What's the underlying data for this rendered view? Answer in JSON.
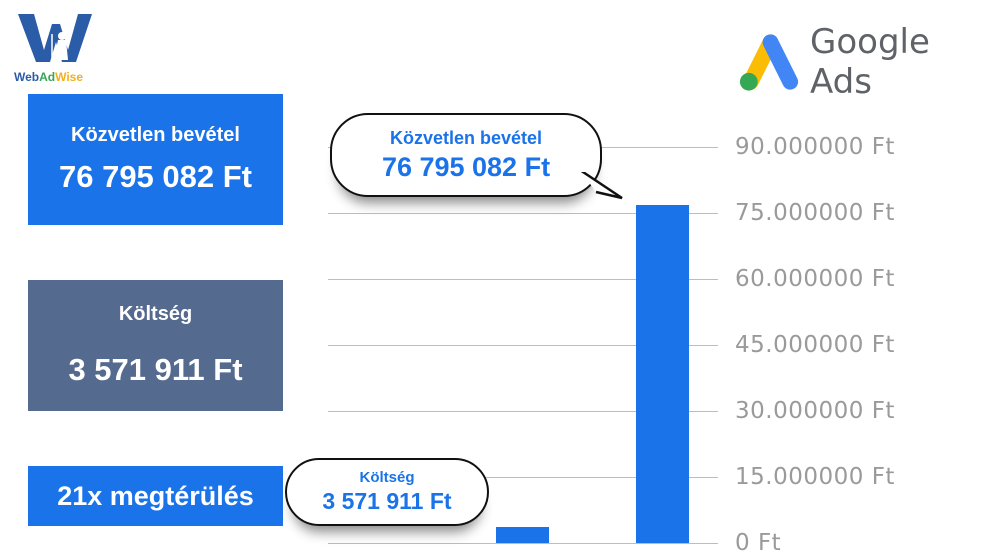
{
  "logo": {
    "brand": "WebAdWise",
    "colors": {
      "w": "#2a5ca8",
      "web": "#2a5ca8",
      "ad": "#34a853",
      "wise": "#f2b01e"
    }
  },
  "google_ads": {
    "label": "Google Ads",
    "colors": {
      "blue": "#4285f4",
      "yellow": "#fbbc04",
      "green": "#34a853"
    }
  },
  "cards": [
    {
      "title": "Közvetlen bevétel",
      "value": "76 795 082 Ft",
      "color": "#1a73e8"
    },
    {
      "title": "Költség",
      "value": "3 571 911 Ft",
      "color": "#546a8e"
    },
    {
      "title": "21x megtérülés",
      "color": "#1a73e8"
    }
  ],
  "callouts": [
    {
      "title": "Közvetlen bevétel",
      "value": "76 795 082 Ft"
    },
    {
      "title": "Költség",
      "value": "3 571 911 Ft"
    }
  ],
  "chart_data": {
    "type": "bar",
    "categories": [
      "Költség",
      "Közvetlen bevétel"
    ],
    "values": [
      3571911,
      76795082
    ],
    "ylim": [
      0,
      90000000
    ],
    "yticks": [
      0,
      15000000,
      30000000,
      45000000,
      60000000,
      75000000,
      90000000
    ],
    "ytick_labels": [
      "0 Ft",
      "15.000000 Ft",
      "30.000000 Ft",
      "45.000000 Ft",
      "60.000000 Ft",
      "75.000000 Ft",
      "90.000000 Ft"
    ],
    "y_axis_side": "right",
    "grid": true,
    "bar_color": "#1a73e8"
  }
}
